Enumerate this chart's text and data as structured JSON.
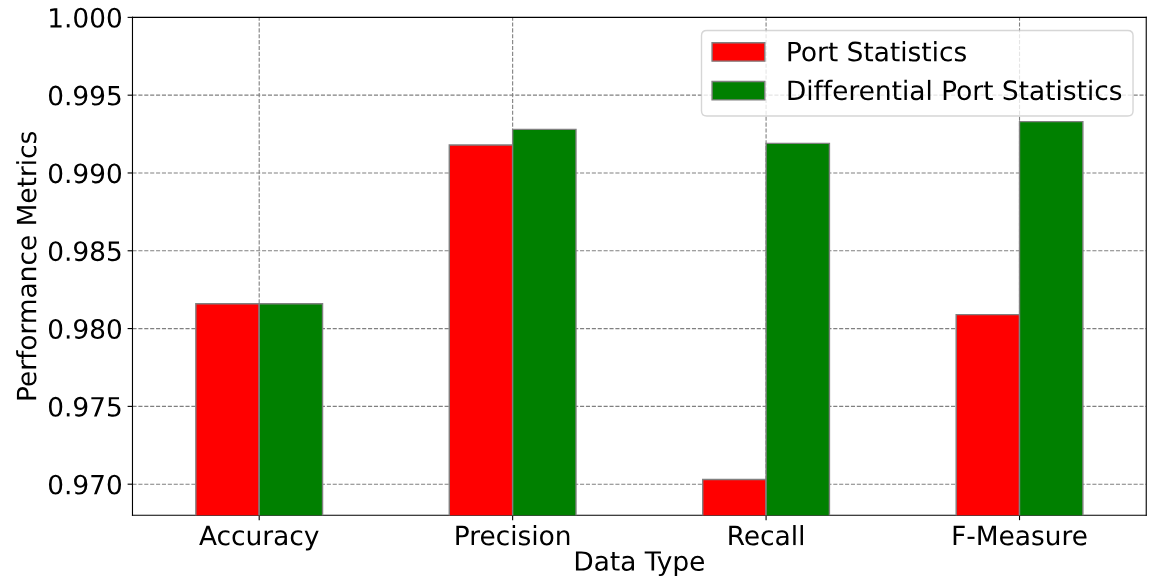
{
  "chart_data": {
    "type": "bar",
    "xlabel": "Data Type",
    "ylabel": "Performance Metrics",
    "categories": [
      "Accuracy",
      "Precision",
      "Recall",
      "F-Measure"
    ],
    "series": [
      {
        "name": "Port Statistics",
        "color": "#ff0000",
        "values": [
          0.9816,
          0.9918,
          0.9703,
          0.9809
        ]
      },
      {
        "name": "Differential Port Statistics",
        "color": "#008000",
        "values": [
          0.9816,
          0.9928,
          0.9919,
          0.9933
        ]
      }
    ],
    "ylim": [
      0.968,
      1.0
    ],
    "yticks": [
      {
        "value": 0.97,
        "label": "0.970"
      },
      0.975,
      {
        "value": 0.98,
        "label": "0.980"
      },
      0.985,
      {
        "value": 0.99,
        "label": "0.990"
      },
      0.995,
      {
        "value": 1.0,
        "label": "1.000"
      }
    ],
    "grid": true,
    "legend": "top right"
  }
}
